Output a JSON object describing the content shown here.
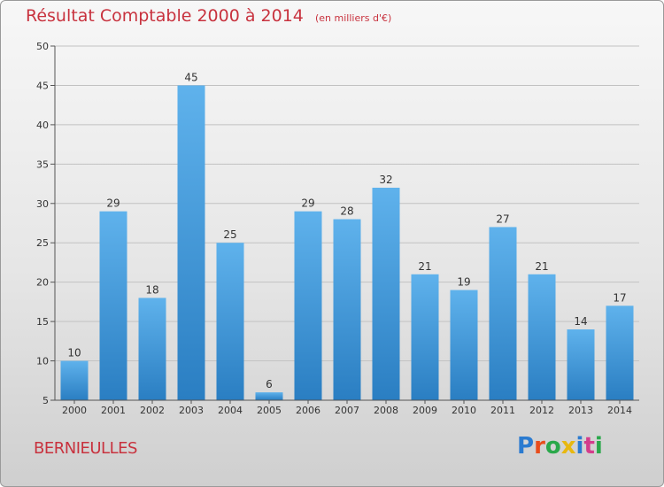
{
  "header": {
    "title": "Résultat Comptable 2000 à 2014",
    "subtitle": "(en milliers d'€)"
  },
  "footer": {
    "commune": "BERNIEULLES",
    "logo_text": "Proxiti",
    "logo_colors": [
      "#2b7bd0",
      "#e84d1c",
      "#2aa84a",
      "#e8b810",
      "#2b7bd0",
      "#d43d8c",
      "#2aa84a"
    ]
  },
  "colors": {
    "bar_top": "#5fb2ec",
    "bar_bottom": "#2a7ec2",
    "grid": "#c2c2c2",
    "axis": "#555555",
    "title": "#c8323e"
  },
  "chart_data": {
    "type": "bar",
    "title": "Résultat Comptable 2000 à 2014",
    "subtitle": "(en milliers d'€)",
    "xlabel": "",
    "ylabel": "",
    "categories": [
      "2000",
      "2001",
      "2002",
      "2003",
      "2004",
      "2005",
      "2006",
      "2007",
      "2008",
      "2009",
      "2010",
      "2011",
      "2012",
      "2013",
      "2014"
    ],
    "values": [
      10,
      29,
      18,
      45,
      25,
      6,
      29,
      28,
      32,
      21,
      19,
      27,
      21,
      14,
      17
    ],
    "ylim": [
      5,
      50
    ],
    "yticks": [
      5,
      10,
      15,
      20,
      25,
      30,
      35,
      40,
      45,
      50
    ],
    "grid": true
  }
}
